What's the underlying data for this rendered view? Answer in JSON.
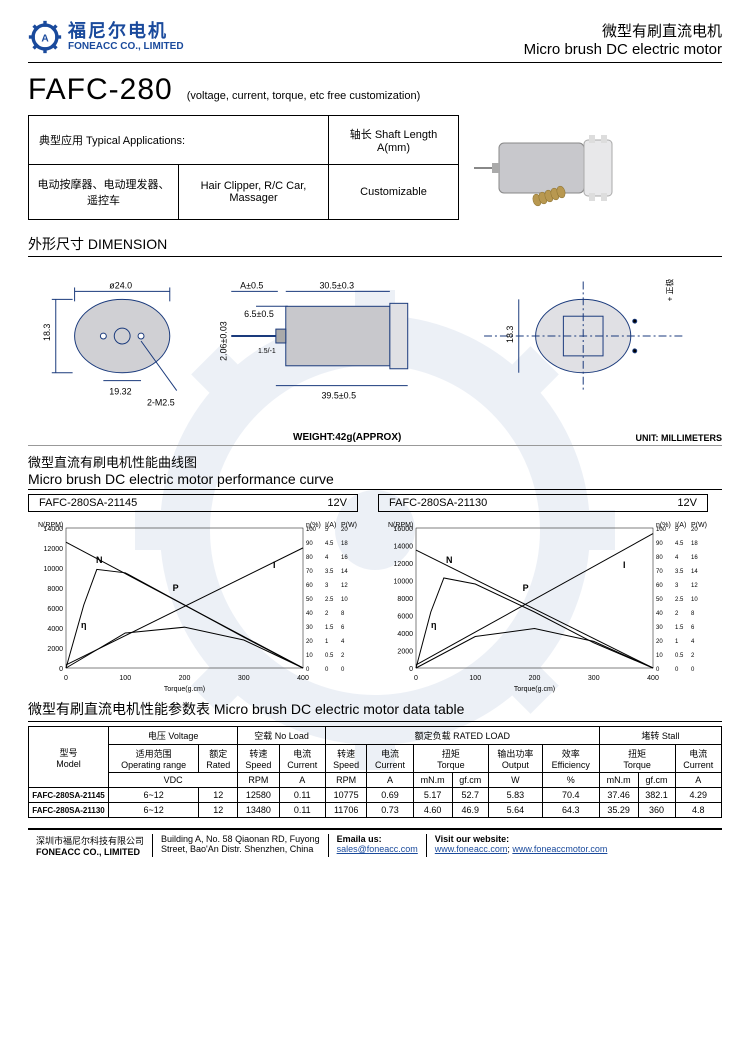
{
  "header": {
    "logo_cn": "福尼尔电机",
    "logo_en": "FONEACC CO., LIMITED",
    "title_cn": "微型有刷直流电机",
    "title_en": "Micro brush DC electric motor"
  },
  "model": {
    "code": "FAFC-280",
    "subtitle": "(voltage, current, torque, etc free customization)"
  },
  "app_table": {
    "h1": "典型应用 Typical Applications:",
    "h2": "轴长 Shaft Length A(mm)",
    "c1": "电动按摩器、电动理发器、遥控车",
    "c2": "Hair Clipper, R/C Car, Massager",
    "c3": "Customizable"
  },
  "dimension": {
    "title": "外形尺寸 DIMENSION",
    "weight": "WEIGHT:42g(APPROX)",
    "unit": "UNIT: MILLIMETERS",
    "labels": {
      "d24": "ø24.0",
      "h18": "18.3",
      "p19": "19.32",
      "m25": "2-M2.5",
      "a05": "A±0.5",
      "l65": "6.5±0.5",
      "d206": "2.06±0.03",
      "l15": "1.5/-1",
      "l305": "30.5±0.3",
      "l395": "39.5±0.5",
      "pos": "+ 正极"
    }
  },
  "curve": {
    "title_cn": "微型直流有刷电机性能曲线图",
    "title_en": "Micro brush DC electric motor performance curve",
    "left": {
      "model": "FAFC-280SA-21145",
      "voltage": "12V"
    },
    "right": {
      "model": "FAFC-280SA-21130",
      "voltage": "12V"
    },
    "axes": {
      "n_label": "N(RPM)",
      "eta_label": "η(%)",
      "i_label": "I(A)",
      "p_label": "P(W)",
      "x_label": "Torque(g.cm)"
    },
    "left_chart": {
      "n_max": 14000,
      "n_step": 2000,
      "eta_max": 100,
      "eta_step": 10,
      "i_max": 5,
      "i_step": 1,
      "p_max": 20,
      "p_ticks": [
        2,
        4,
        6,
        8,
        10,
        12,
        14,
        16,
        18,
        20,
        "4.5",
        "3.5",
        "2.5",
        "1.5"
      ],
      "x_max": 400,
      "x_step": 100,
      "series": {
        "N": {
          "points": [
            [
              0,
              12580
            ],
            [
              400,
              0
            ]
          ],
          "color": "#000"
        },
        "I": {
          "points": [
            [
              0,
              0.11
            ],
            [
              400,
              4.29
            ]
          ],
          "max": 5,
          "color": "#000"
        },
        "eta": {
          "points": [
            [
              0,
              0
            ],
            [
              30,
              45
            ],
            [
              52,
              70.4
            ],
            [
              100,
              68
            ],
            [
              200,
              45
            ],
            [
              300,
              22
            ],
            [
              400,
              0
            ]
          ],
          "max": 100,
          "color": "#000"
        },
        "P": {
          "points": [
            [
              0,
              0
            ],
            [
              100,
              5
            ],
            [
              200,
              5.83
            ],
            [
              300,
              4
            ],
            [
              400,
              0
            ]
          ],
          "max": 20,
          "peakshift": 0.6,
          "color": "#000"
        }
      }
    },
    "right_chart": {
      "n_max": 16000,
      "n_step": 2000,
      "eta_max": 100,
      "eta_step": 10,
      "i_max": 5,
      "i_step": 1,
      "p_max": 20,
      "x_max": 400,
      "x_step": 100,
      "series": {
        "N": {
          "points": [
            [
              0,
              13480
            ],
            [
              400,
              0
            ]
          ],
          "color": "#000"
        },
        "I": {
          "points": [
            [
              0,
              0.11
            ],
            [
              400,
              4.8
            ]
          ],
          "max": 5,
          "color": "#000"
        },
        "eta": {
          "points": [
            [
              0,
              0
            ],
            [
              25,
              40
            ],
            [
              47,
              64.3
            ],
            [
              100,
              60
            ],
            [
              200,
              40
            ],
            [
              300,
              18
            ],
            [
              400,
              0
            ]
          ],
          "max": 100,
          "color": "#000"
        },
        "P": {
          "points": [
            [
              0,
              0
            ],
            [
              100,
              4.5
            ],
            [
              200,
              5.64
            ],
            [
              300,
              3.8
            ],
            [
              400,
              0
            ]
          ],
          "max": 20,
          "peakshift": 0.55,
          "color": "#000"
        }
      }
    }
  },
  "data_table": {
    "title": "微型有刷直流电机性能参数表 Micro brush DC electric motor data table",
    "headers": {
      "model": "型号\nModel",
      "voltage": "电压 Voltage",
      "noload": "空载 No Load",
      "rated": "额定负载 RATED LOAD",
      "stall": "堵转 Stall",
      "range_cn": "适用范围",
      "range_en": "Operating range",
      "rated_v": "额定\nRated",
      "speed": "转速\nSpeed",
      "current": "电流\nCurrent",
      "torque": "扭矩\nTorque",
      "output": "输出功率\nOutput",
      "eff": "效率\nEfficiency",
      "vdc": "VDC",
      "rpm": "RPM",
      "a": "A",
      "mnm": "mN.m",
      "gfcm": "gf.cm",
      "w": "W",
      "pct": "%"
    },
    "rows": [
      {
        "model": "FAFC-280SA-21145",
        "range": "6~12",
        "rated": "12",
        "nl_rpm": "12580",
        "nl_a": "0.11",
        "r_rpm": "10775",
        "r_a": "0.69",
        "r_mnm": "5.17",
        "r_gf": "52.7",
        "r_w": "5.83",
        "r_eff": "70.4",
        "s_mnm": "37.46",
        "s_gf": "382.1",
        "s_a": "4.29"
      },
      {
        "model": "FAFC-280SA-21130",
        "range": "6~12",
        "rated": "12",
        "nl_rpm": "13480",
        "nl_a": "0.11",
        "r_rpm": "11706",
        "r_a": "0.73",
        "r_mnm": "4.60",
        "r_gf": "46.9",
        "r_w": "5.64",
        "r_eff": "64.3",
        "s_mnm": "35.29",
        "s_gf": "360",
        "s_a": "4.8"
      }
    ]
  },
  "footer": {
    "company_cn": "深圳市福尼尔科技有限公司",
    "company_en": "FONEACC CO., LIMITED",
    "address1": "Building A, No. 58 Qiaonan RD, Fuyong",
    "address2": "Street, Bao'An Distr. Shenzhen, China",
    "email_label": "Emaila us:",
    "email": "sales@foneacc.com",
    "web_label": "Visit our website:",
    "web1": "www.foneacc.com",
    "web2": "www.foneaccmotor.com"
  },
  "colors": {
    "brand": "#1a4a9c",
    "line": "#000000",
    "motor_body": "#c8c8cc",
    "motor_cap": "#e8e8ea",
    "worm": "#b89850"
  }
}
